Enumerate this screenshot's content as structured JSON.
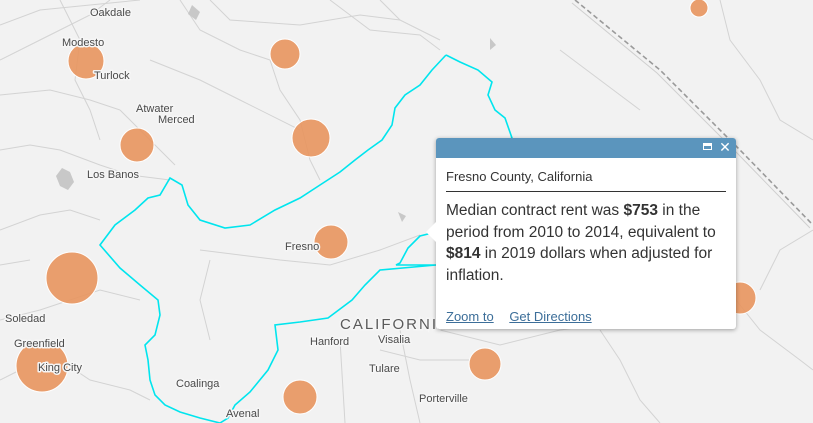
{
  "map": {
    "state_label": "CALIFORNIA",
    "colors": {
      "land": "#f2f2f2",
      "county_border": "#d2d2d2",
      "highlight_border": "#00e5ee",
      "proportional_symbol": "#e8955e"
    },
    "places": [
      {
        "name": "Oakdale"
      },
      {
        "name": "Modesto"
      },
      {
        "name": "Turlock"
      },
      {
        "name": "Atwater"
      },
      {
        "name": "Merced"
      },
      {
        "name": "Los Banos"
      },
      {
        "name": "Fresno"
      },
      {
        "name": "Soledad"
      },
      {
        "name": "Greenfield"
      },
      {
        "name": "King City"
      },
      {
        "name": "Coalinga"
      },
      {
        "name": "Hanford"
      },
      {
        "name": "Visalia"
      },
      {
        "name": "Tulare"
      },
      {
        "name": "Porterville"
      },
      {
        "name": "Avenal"
      }
    ]
  },
  "popup": {
    "title": "Fresno County, California",
    "text_1": "Median contract rent was ",
    "rent_nominal": "$753",
    "text_2": " in the period from 2010 to 2014, equivalent to ",
    "rent_adjusted": "$814",
    "text_3": " in 2019 dollars when adjusted for inflation.",
    "zoom_label": "Zoom to",
    "directions_label": "Get Directions",
    "maximize_icon": "maximize-icon",
    "close_icon": "close-icon"
  }
}
